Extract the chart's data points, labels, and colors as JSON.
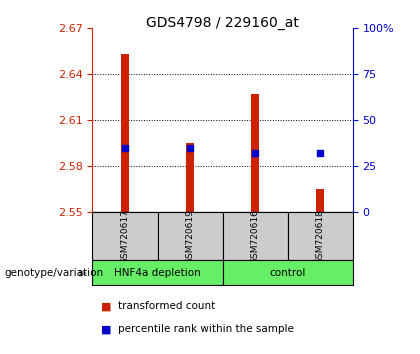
{
  "title": "GDS4798 / 229160_at",
  "samples": [
    "GSM720617",
    "GSM720619",
    "GSM720616",
    "GSM720618"
  ],
  "bar_bottoms": [
    2.55,
    2.55,
    2.55,
    2.55
  ],
  "bar_tops": [
    2.653,
    2.595,
    2.627,
    2.565
  ],
  "percentile_values": [
    35,
    35,
    32,
    32
  ],
  "left_ylim": [
    2.55,
    2.67
  ],
  "right_ylim": [
    0,
    100
  ],
  "left_yticks": [
    2.55,
    2.58,
    2.61,
    2.64,
    2.67
  ],
  "right_yticks": [
    0,
    25,
    50,
    75,
    100
  ],
  "right_yticklabels": [
    "0",
    "25",
    "50",
    "75",
    "100%"
  ],
  "bar_color": "#cc2200",
  "square_color": "#0000cc",
  "group1_label": "HNF4a depletion",
  "group2_label": "control",
  "group_bg_color": "#66ee66",
  "sample_bg_color": "#cccccc",
  "legend_bar_label": "transformed count",
  "legend_sq_label": "percentile rank within the sample",
  "genotype_label": "genotype/variation",
  "left_tick_color": "#cc2200",
  "right_tick_color": "#0000cc",
  "grid_yticks": [
    2.58,
    2.61,
    2.64
  ]
}
